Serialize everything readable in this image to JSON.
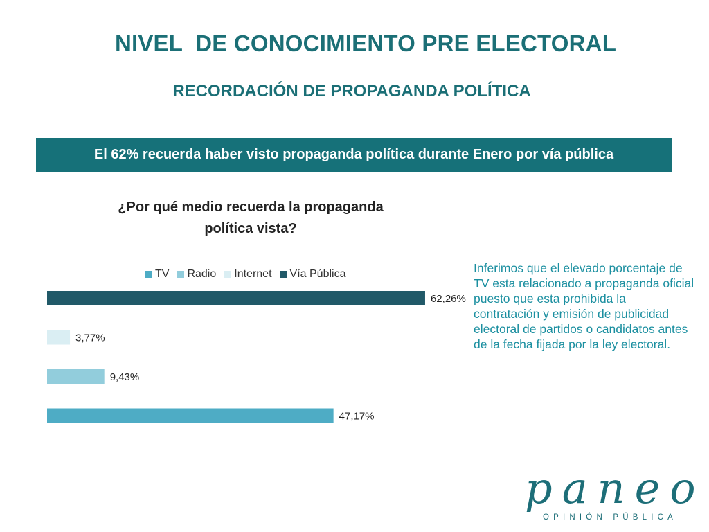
{
  "slide": {
    "title": "NIVEL  DE CONOCIMIENTO PRE ELECTORAL",
    "subtitle": "RECORDACIÓN DE PROPAGANDA POLÍTICA",
    "banner": "El 62% recuerda haber visto propaganda política durante Enero por vía pública",
    "note": "Inferimos que el elevado porcentaje de TV esta relacionado a propaganda oficial puesto que esta prohibida la contratación y emisión de publicidad electoral  de partidos o candidatos antes de la fecha fijada por la ley electoral."
  },
  "logo": {
    "word": "paneo",
    "tagline": "OPINIÓN PÚBLICA",
    "color": "#1d6e78"
  },
  "chart_data": {
    "type": "bar",
    "orientation": "horizontal",
    "title": "¿Por qué medio recuerda la propaganda política vista?",
    "legend_position": "top",
    "grid": false,
    "xlim": [
      0,
      65
    ],
    "categories": [
      "TV",
      "Radio",
      "Internet",
      "Vía Pública"
    ],
    "series": [
      {
        "name": "TV",
        "value": 47.17,
        "label": "47,17%",
        "color": "#4eacc5"
      },
      {
        "name": "Radio",
        "value": 9.43,
        "label": "9,43%",
        "color": "#92cddc"
      },
      {
        "name": "Internet",
        "value": 3.77,
        "label": "3,77%",
        "color": "#daeef3"
      },
      {
        "name": "Vía Pública",
        "value": 62.26,
        "label": "62,26%",
        "color": "#215968"
      }
    ]
  }
}
